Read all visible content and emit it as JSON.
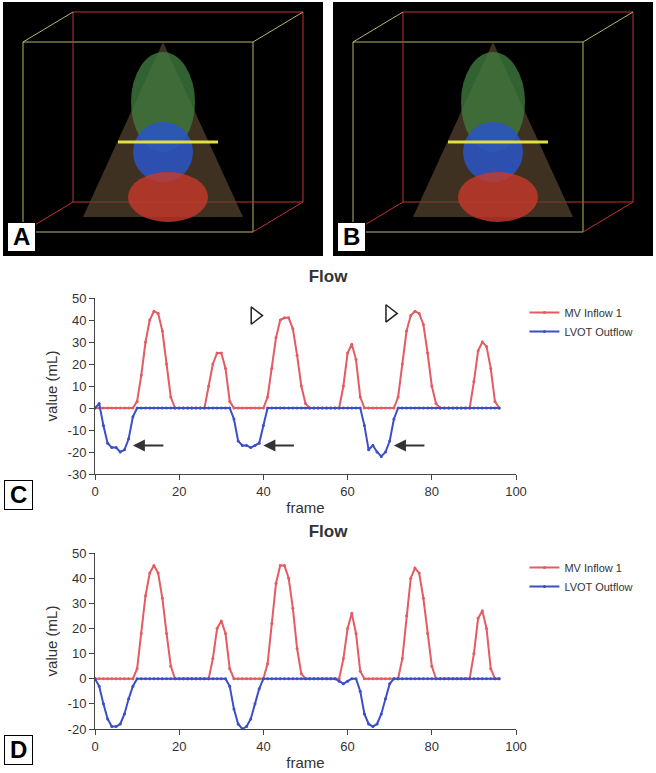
{
  "panels": [
    {
      "label": "A"
    },
    {
      "label": "B"
    }
  ],
  "chart_data": [
    {
      "panel": "C",
      "type": "line",
      "title": "Flow",
      "x_label": "frame",
      "y_label": "value (mL)",
      "xlim": [
        0,
        100
      ],
      "xticks": [
        0,
        20,
        40,
        60,
        80,
        100
      ],
      "ylim": [
        -30,
        50
      ],
      "yticks": [
        -30,
        -20,
        -10,
        0,
        10,
        20,
        30,
        40,
        50
      ],
      "grid": false,
      "legend": "right",
      "x": [
        0,
        1,
        2,
        3,
        4,
        5,
        6,
        7,
        8,
        9,
        10,
        11,
        12,
        13,
        14,
        15,
        16,
        17,
        18,
        19,
        20,
        21,
        22,
        23,
        24,
        25,
        26,
        27,
        28,
        29,
        30,
        31,
        32,
        33,
        34,
        35,
        36,
        37,
        38,
        39,
        40,
        41,
        42,
        43,
        44,
        45,
        46,
        47,
        48,
        49,
        50,
        51,
        52,
        53,
        54,
        55,
        56,
        57,
        58,
        59,
        60,
        61,
        62,
        63,
        64,
        65,
        66,
        67,
        68,
        69,
        70,
        71,
        72,
        73,
        74,
        75,
        76,
        77,
        78,
        79,
        80,
        81,
        82,
        83,
        84,
        85,
        86,
        87,
        88,
        89,
        90,
        91,
        92,
        93,
        94,
        95,
        96
      ],
      "series": [
        {
          "name": "MV Inflow 1",
          "color": "#e25c62",
          "marker": "circle",
          "values": [
            0,
            0,
            0,
            0,
            0,
            0,
            0,
            0,
            0,
            0,
            3,
            15,
            30,
            40,
            44,
            43,
            35,
            20,
            5,
            0,
            0,
            0,
            0,
            0,
            0,
            0,
            0,
            10,
            20,
            25,
            25,
            18,
            3,
            0,
            0,
            0,
            0,
            0,
            0,
            0,
            0,
            5,
            18,
            32,
            40,
            41,
            41,
            36,
            24,
            10,
            2,
            0,
            0,
            0,
            0,
            0,
            0,
            0,
            0,
            10,
            25,
            29,
            22,
            5,
            0,
            0,
            0,
            0,
            0,
            0,
            0,
            0,
            5,
            20,
            35,
            42,
            44,
            43,
            38,
            25,
            10,
            2,
            0,
            0,
            0,
            0,
            0,
            0,
            0,
            0,
            12,
            26,
            30,
            28,
            18,
            3,
            0
          ]
        },
        {
          "name": "LVOT Outflow",
          "color": "#3a4fc8",
          "marker": "circle",
          "values": [
            0,
            2,
            -8,
            -16,
            -18,
            -18,
            -20,
            -19,
            -14,
            -4,
            0,
            0,
            0,
            0,
            0,
            0,
            0,
            0,
            0,
            0,
            0,
            0,
            0,
            0,
            0,
            0,
            0,
            0,
            0,
            0,
            0,
            0,
            0,
            -5,
            -15,
            -17,
            -17,
            -18,
            -17,
            -16,
            -8,
            0,
            0,
            0,
            0,
            0,
            0,
            0,
            0,
            0,
            0,
            0,
            0,
            0,
            0,
            0,
            0,
            0,
            0,
            0,
            0,
            0,
            0,
            0,
            -8,
            -19,
            -17,
            -20,
            -22,
            -20,
            -15,
            -5,
            0,
            0,
            0,
            0,
            0,
            0,
            0,
            0,
            0,
            0,
            0,
            0,
            0,
            0,
            0,
            0,
            0,
            0,
            0,
            0,
            0,
            0,
            0,
            0,
            0
          ]
        }
      ],
      "annotations": [
        {
          "x": 38,
          "y": 42,
          "marker": "triangle"
        },
        {
          "x": 70,
          "y": 43,
          "marker": "triangle"
        },
        {
          "x": 9,
          "y": -17,
          "marker": "arrow"
        },
        {
          "x": 40,
          "y": -17,
          "marker": "arrow"
        },
        {
          "x": 71,
          "y": -17,
          "marker": "arrow"
        }
      ]
    },
    {
      "panel": "D",
      "type": "line",
      "title": "Flow",
      "x_label": "frame",
      "y_label": "value (mL)",
      "xlim": [
        0,
        100
      ],
      "xticks": [
        0,
        20,
        40,
        60,
        80,
        100
      ],
      "ylim": [
        -20,
        50
      ],
      "yticks": [
        -20,
        -10,
        0,
        10,
        20,
        30,
        40,
        50
      ],
      "grid": false,
      "legend": "right",
      "x": [
        0,
        1,
        2,
        3,
        4,
        5,
        6,
        7,
        8,
        9,
        10,
        11,
        12,
        13,
        14,
        15,
        16,
        17,
        18,
        19,
        20,
        21,
        22,
        23,
        24,
        25,
        26,
        27,
        28,
        29,
        30,
        31,
        32,
        33,
        34,
        35,
        36,
        37,
        38,
        39,
        40,
        41,
        42,
        43,
        44,
        45,
        46,
        47,
        48,
        49,
        50,
        51,
        52,
        53,
        54,
        55,
        56,
        57,
        58,
        59,
        60,
        61,
        62,
        63,
        64,
        65,
        66,
        67,
        68,
        69,
        70,
        71,
        72,
        73,
        74,
        75,
        76,
        77,
        78,
        79,
        80,
        81,
        82,
        83,
        84,
        85,
        86,
        87,
        88,
        89,
        90,
        91,
        92,
        93,
        94,
        95,
        96
      ],
      "series": [
        {
          "name": "MV Inflow 1",
          "color": "#e25c62",
          "marker": "circle",
          "values": [
            0,
            0,
            0,
            0,
            0,
            0,
            0,
            0,
            0,
            0,
            4,
            18,
            33,
            42,
            45,
            42,
            32,
            18,
            5,
            0,
            0,
            0,
            0,
            0,
            0,
            0,
            0,
            0,
            8,
            20,
            23,
            18,
            4,
            0,
            0,
            0,
            0,
            0,
            0,
            0,
            0,
            6,
            22,
            38,
            45,
            45,
            40,
            28,
            12,
            2,
            0,
            0,
            0,
            0,
            0,
            0,
            0,
            0,
            0,
            8,
            20,
            26,
            18,
            3,
            0,
            0,
            0,
            0,
            0,
            0,
            0,
            0,
            0,
            8,
            25,
            40,
            44,
            42,
            32,
            18,
            5,
            0,
            0,
            0,
            0,
            0,
            0,
            0,
            0,
            0,
            10,
            24,
            27,
            20,
            4,
            0,
            0
          ]
        },
        {
          "name": "LVOT Outflow",
          "color": "#3a4fc8",
          "marker": "circle",
          "values": [
            0,
            -3,
            -10,
            -16,
            -19,
            -19,
            -18,
            -14,
            -8,
            -3,
            0,
            0,
            0,
            0,
            0,
            0,
            0,
            0,
            0,
            0,
            0,
            0,
            0,
            0,
            0,
            0,
            0,
            0,
            0,
            0,
            0,
            0,
            -3,
            -12,
            -18,
            -20,
            -19,
            -16,
            -10,
            -4,
            0,
            0,
            0,
            0,
            0,
            0,
            0,
            0,
            0,
            0,
            0,
            0,
            0,
            0,
            0,
            0,
            0,
            0,
            -1,
            -2,
            -1,
            0,
            0,
            -5,
            -14,
            -18,
            -19,
            -18,
            -14,
            -8,
            -2,
            0,
            0,
            0,
            0,
            0,
            0,
            0,
            0,
            0,
            0,
            0,
            0,
            0,
            0,
            0,
            0,
            0,
            0,
            0,
            0,
            0,
            0,
            0,
            0,
            0,
            0
          ]
        }
      ]
    }
  ]
}
